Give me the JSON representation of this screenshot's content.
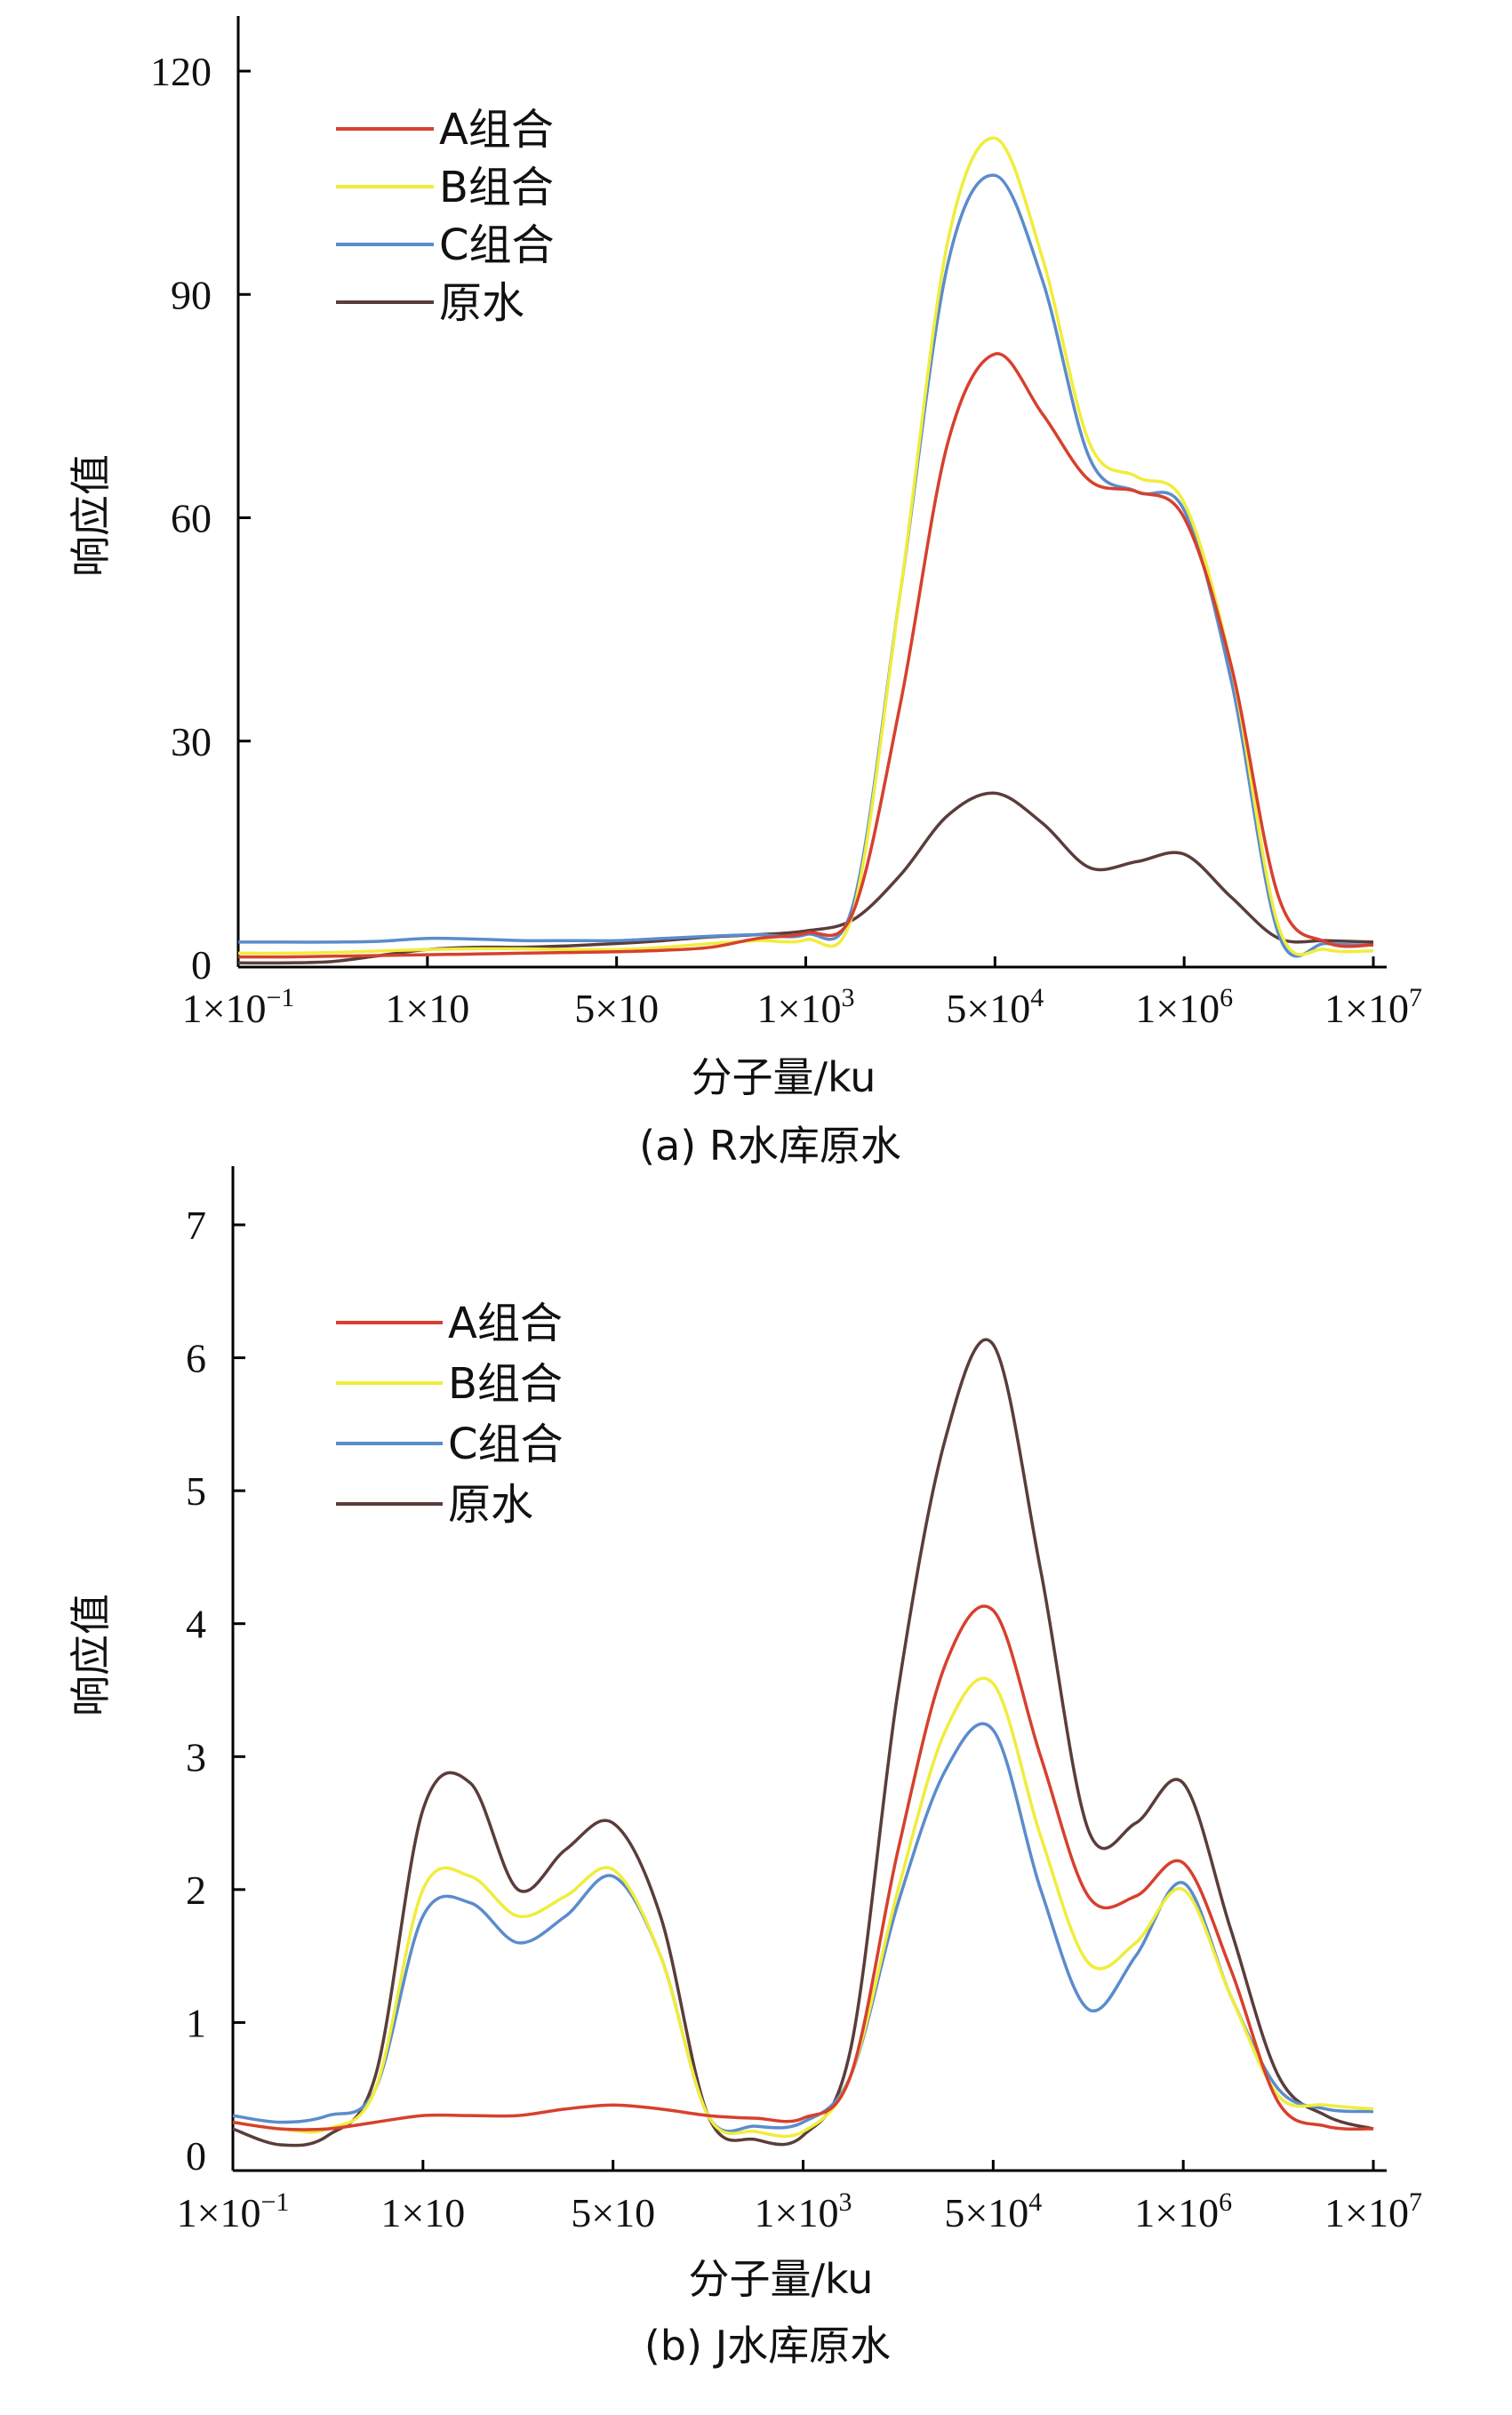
{
  "chart_data": [
    {
      "type": "line",
      "caption": "(a) R水库原水",
      "xlabel": "分子量/ku",
      "ylabel": "响应值",
      "x_scale": "categorical (log-like)",
      "xticks": [
        {
          "base": "1×10",
          "sup": "−1"
        },
        {
          "base": "1×10",
          "sup": ""
        },
        {
          "base": "5×10",
          "sup": ""
        },
        {
          "base": "1×10",
          "sup": "3"
        },
        {
          "base": "5×10",
          "sup": "4"
        },
        {
          "base": "1×10",
          "sup": "6"
        },
        {
          "base": "1×10",
          "sup": "7"
        }
      ],
      "yticks": [
        "0",
        "30",
        "60",
        "90",
        "120"
      ],
      "ylim": [
        0,
        120
      ],
      "x_positions": [
        0,
        0.5,
        1,
        1.5,
        2,
        2.5,
        3,
        3.5,
        4,
        4.5,
        5,
        5.5,
        6,
        6.5,
        7,
        7.5,
        8,
        8.5,
        9,
        9.5,
        10,
        10.5,
        11,
        11.5,
        12
      ],
      "legend_position": "top-left",
      "series": [
        {
          "name": "A组合",
          "color": "#d7402e",
          "values": [
            1.0,
            1.0,
            1.1,
            1.2,
            1.3,
            1.4,
            1.5,
            1.6,
            1.7,
            1.9,
            2.3,
            3.5,
            4.2,
            7.0,
            35.0,
            70.0,
            82.0,
            74.0,
            65.0,
            63.5,
            60.0,
            40.0,
            9.0,
            3.0,
            2.6
          ]
        },
        {
          "name": "B组合",
          "color": "#f0ed3c",
          "values": [
            1.5,
            1.5,
            1.6,
            1.8,
            2.0,
            2.1,
            2.1,
            2.0,
            2.0,
            2.3,
            2.8,
            3.2,
            3.3,
            7.0,
            50.0,
            97.0,
            111.0,
            95.0,
            70.0,
            65.5,
            62.0,
            40.0,
            5.0,
            2.0,
            1.8
          ]
        },
        {
          "name": "C组合",
          "color": "#5b8ccc",
          "values": [
            3.0,
            3.0,
            3.0,
            3.1,
            3.5,
            3.4,
            3.2,
            3.2,
            3.2,
            3.5,
            3.8,
            4.0,
            4.0,
            8.0,
            50.0,
            94.0,
            106.0,
            92.0,
            68.0,
            63.5,
            61.0,
            38.0,
            4.0,
            2.8,
            2.6
          ]
        },
        {
          "name": "原水",
          "color": "#5a3d3a",
          "values": [
            0.2,
            0.2,
            0.4,
            1.2,
            2.0,
            2.3,
            2.3,
            2.5,
            2.8,
            3.2,
            3.7,
            4.0,
            4.5,
            6.0,
            12.0,
            20.0,
            23.0,
            19.0,
            13.0,
            13.8,
            14.8,
            9.0,
            3.5,
            3.2,
            3.0
          ]
        }
      ]
    },
    {
      "type": "line",
      "caption": "(b) J水库原水",
      "xlabel": "分子量/ku",
      "ylabel": "响应值",
      "x_scale": "categorical (log-like)",
      "xticks": [
        {
          "base": "1×10",
          "sup": "−1"
        },
        {
          "base": "1×10",
          "sup": ""
        },
        {
          "base": "5×10",
          "sup": ""
        },
        {
          "base": "1×10",
          "sup": "3"
        },
        {
          "base": "5×10",
          "sup": "4"
        },
        {
          "base": "1×10",
          "sup": "6"
        },
        {
          "base": "1×10",
          "sup": "7"
        }
      ],
      "yticks": [
        "0",
        "1",
        "2",
        "3",
        "4",
        "5",
        "6",
        "7"
      ],
      "ylim": [
        0,
        7
      ],
      "x_positions": [
        0,
        0.5,
        1,
        1.5,
        2,
        2.5,
        3,
        3.5,
        4,
        4.5,
        5,
        5.5,
        6,
        6.5,
        7,
        7.5,
        8,
        8.5,
        9,
        9.5,
        10,
        10.5,
        11,
        11.5,
        12
      ],
      "legend_position": "top-left",
      "series": [
        {
          "name": "A组合",
          "color": "#d7402e",
          "values": [
            0.25,
            0.2,
            0.2,
            0.25,
            0.3,
            0.3,
            0.3,
            0.35,
            0.38,
            0.35,
            0.3,
            0.28,
            0.28,
            0.6,
            2.3,
            3.7,
            4.1,
            3.0,
            1.95,
            1.95,
            2.2,
            1.4,
            0.4,
            0.22,
            0.2
          ]
        },
        {
          "name": "B组合",
          "color": "#f0ed3c",
          "values": [
            0.25,
            0.2,
            0.2,
            0.5,
            2.0,
            2.1,
            1.8,
            1.95,
            2.15,
            1.5,
            0.3,
            0.18,
            0.18,
            0.6,
            2.0,
            3.2,
            3.55,
            2.4,
            1.45,
            1.6,
            2.0,
            1.2,
            0.45,
            0.38,
            0.35
          ]
        },
        {
          "name": "C组合",
          "color": "#5b8ccc",
          "values": [
            0.3,
            0.25,
            0.3,
            0.5,
            1.8,
            1.9,
            1.6,
            1.8,
            2.1,
            1.5,
            0.3,
            0.22,
            0.25,
            0.6,
            1.9,
            2.9,
            3.2,
            2.0,
            1.1,
            1.5,
            2.05,
            1.2,
            0.5,
            0.35,
            0.33
          ]
        },
        {
          "name": "原水",
          "color": "#5a3d3a",
          "values": [
            0.2,
            0.08,
            0.15,
            0.6,
            2.6,
            2.8,
            2.0,
            2.3,
            2.5,
            1.8,
            0.3,
            0.12,
            0.15,
            0.8,
            3.5,
            5.4,
            6.1,
            4.4,
            2.45,
            2.5,
            2.8,
            1.7,
            0.6,
            0.3,
            0.2
          ]
        }
      ]
    }
  ]
}
